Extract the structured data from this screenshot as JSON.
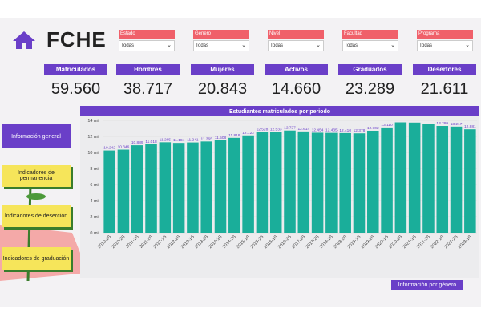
{
  "header": {
    "title": "FCHE"
  },
  "filters": [
    {
      "label": "Estado",
      "value": "Todas"
    },
    {
      "label": "Género",
      "value": "Todas"
    },
    {
      "label": "Nivel",
      "value": "Todas"
    },
    {
      "label": "Facultad",
      "value": "Todas"
    },
    {
      "label": "Programa",
      "value": "Todas"
    }
  ],
  "kpis": [
    {
      "label": "Matriculados",
      "value": "59.560"
    },
    {
      "label": "Hombres",
      "value": "38.717"
    },
    {
      "label": "Mujeres",
      "value": "20.843"
    },
    {
      "label": "Activos",
      "value": "14.660"
    },
    {
      "label": "Graduados",
      "value": "23.289"
    },
    {
      "label": "Desertores",
      "value": "21.611"
    }
  ],
  "nav": [
    "Información general",
    "Indicadores de permanencia",
    "Indicadores de deserción",
    "Indicadores de graduación",
    "Información por género"
  ],
  "chart_data": {
    "type": "bar",
    "title": "Estudiantes matriculados por periodo",
    "categories": [
      "2010-1S",
      "2010-2S",
      "2011-1S",
      "2011-2S",
      "2012-1S",
      "2012-2S",
      "2013-1S",
      "2013-2S",
      "2014-1S",
      "2014-2S",
      "2015-1S",
      "2015-2S",
      "2016-1S",
      "2016-2S",
      "2017-1S",
      "2017-2S",
      "2018-1S",
      "2018-2S",
      "2019-1S",
      "2019-2S",
      "2020-1S",
      "2020-2S",
      "2021-1S",
      "2021-2S",
      "2022-1S",
      "2022-2S",
      "2023-1S"
    ],
    "values": [
      10242,
      10346,
      10889,
      11018,
      11265,
      11184,
      11241,
      11365,
      11508,
      11818,
      12122,
      12528,
      12533,
      12727,
      12614,
      12454,
      12435,
      12410,
      12378,
      12702,
      13110,
      13750,
      13720,
      13600,
      13299,
      13217,
      12881
    ],
    "value_labels": [
      "10.242",
      "10.346",
      "10.889",
      "11.018",
      "11.265",
      "11.184",
      "11.241",
      "11.365",
      "11.508",
      "11.818",
      "12.122",
      "12.528",
      "12.533",
      "12.727",
      "12.614",
      "12.454",
      "12.435",
      "12.410",
      "12.378",
      "12.702",
      "13.110",
      null,
      null,
      null,
      "13.299",
      "13.217",
      "12.881"
    ],
    "color": "#1aae9a",
    "ylim": [
      0,
      14000
    ],
    "yticks": [
      {
        "value": 0,
        "label": "0 mil"
      },
      {
        "value": 2000,
        "label": "2 mil"
      },
      {
        "value": 4000,
        "label": "4 mil"
      },
      {
        "value": 6000,
        "label": "6 mil"
      },
      {
        "value": 8000,
        "label": "8 mil"
      },
      {
        "value": 10000,
        "label": "10 mil"
      },
      {
        "value": 12000,
        "label": "12 mil"
      },
      {
        "value": 14000,
        "label": "14 mil"
      }
    ]
  }
}
